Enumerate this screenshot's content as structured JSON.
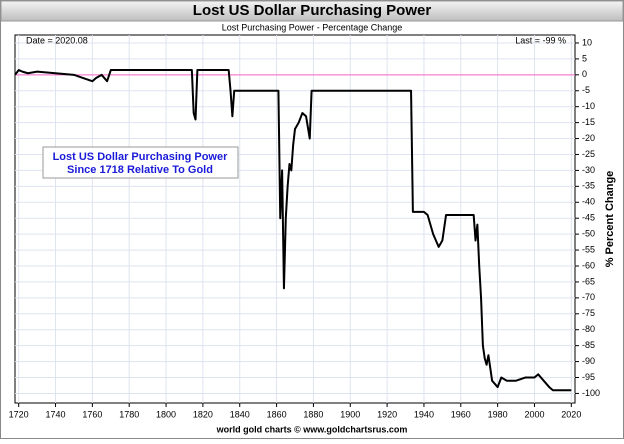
{
  "chart_data": {
    "type": "line",
    "title": "Lost US Dollar Purchasing Power",
    "subtitle": "Lost Purchasing Power - Percentage Change",
    "y_axis_label": "% Percent Change",
    "annotations": {
      "date": "Date = 2020.08",
      "last": "Last = -99 %",
      "box_line1": "Lost US Dollar Purchasing Power",
      "box_line2": "Since 1718 Relative To Gold",
      "footer": "world gold charts © www.goldchartsrus.com"
    },
    "x": [
      1718,
      1720,
      1722,
      1725,
      1730,
      1740,
      1750,
      1755,
      1760,
      1762,
      1765,
      1768,
      1770,
      1780,
      1790,
      1800,
      1810,
      1814,
      1815,
      1816,
      1817,
      1820,
      1834,
      1835,
      1836,
      1837,
      1850,
      1861,
      1862,
      1863,
      1864,
      1865,
      1866,
      1867,
      1868,
      1869,
      1870,
      1872,
      1874,
      1876,
      1878,
      1879,
      1880,
      1900,
      1920,
      1933,
      1934,
      1940,
      1942,
      1945,
      1948,
      1950,
      1952,
      1960,
      1967,
      1968,
      1969,
      1970,
      1971,
      1972,
      1973,
      1974,
      1975,
      1977,
      1980,
      1982,
      1985,
      1990,
      1995,
      2000,
      2002,
      2005,
      2008,
      2010,
      2015,
      2020
    ],
    "series": [
      {
        "name": "Lost Purchasing Power",
        "color": "#000000",
        "values": [
          0,
          1.5,
          1,
          0.5,
          1,
          0.5,
          0,
          -1,
          -2,
          -1,
          0,
          -2,
          1.5,
          1.5,
          1.5,
          1.5,
          1.5,
          1.5,
          -12,
          -14,
          1.5,
          1.5,
          1.5,
          -5,
          -13,
          -5,
          -5,
          -5,
          -45,
          -30,
          -67,
          -45,
          -35,
          -28,
          -30,
          -22,
          -17,
          -15,
          -12,
          -13,
          -20,
          -5,
          -5,
          -5,
          -5,
          -5,
          -43,
          -43,
          -44,
          -50,
          -54,
          -52,
          -44,
          -44,
          -44,
          -52,
          -47,
          -60,
          -70,
          -85,
          -89,
          -91,
          -88,
          -96,
          -98,
          -95,
          -96,
          -96,
          -95,
          -95,
          -94,
          -96,
          -98,
          -99,
          -99,
          -99
        ]
      }
    ],
    "reference_line": 0,
    "reference_color": "#ff66cc",
    "xlim": [
      1718,
      2022
    ],
    "ylim": [
      -103,
      12.5
    ],
    "xticks": [
      1720,
      1740,
      1760,
      1780,
      1800,
      1820,
      1840,
      1860,
      1880,
      1900,
      1920,
      1940,
      1960,
      1980,
      2000,
      2020
    ],
    "yticks": [
      10,
      5,
      0,
      -5,
      -10,
      -15,
      -20,
      -25,
      -30,
      -35,
      -40,
      -45,
      -50,
      -55,
      -60,
      -65,
      -70,
      -75,
      -80,
      -85,
      -90,
      -95,
      -100
    ],
    "grid": true
  }
}
